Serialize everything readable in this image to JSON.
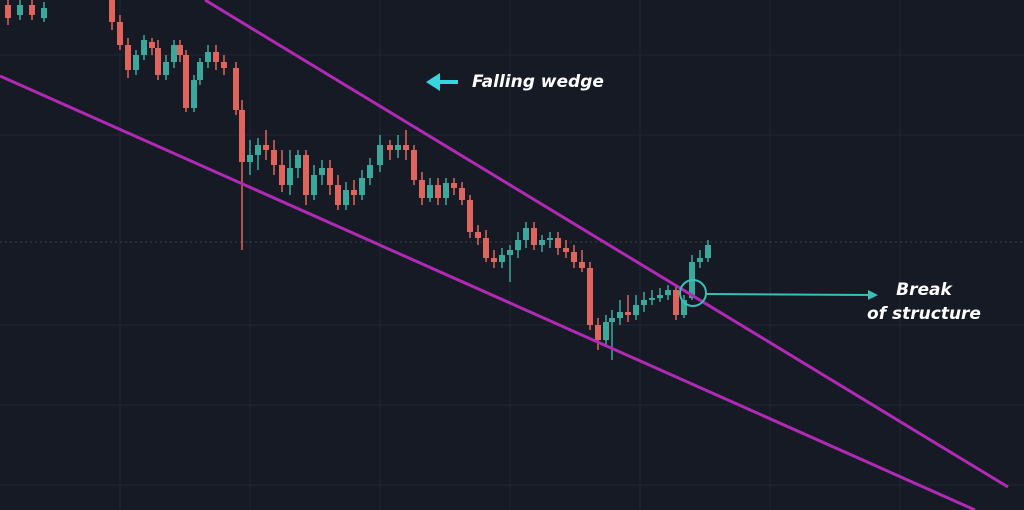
{
  "chart_data": {
    "type": "candlestick",
    "title": "Falling wedge",
    "annotations": [
      "Break",
      "of structure"
    ]
  }
}
